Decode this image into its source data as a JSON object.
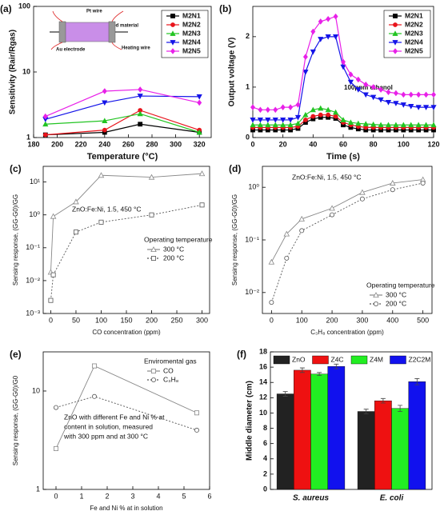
{
  "chart_data": [
    {
      "type": "line",
      "label": "(a)",
      "xlabel": "Temperature (°C)",
      "ylabel": "Sensitivity (Rair/Rgas)",
      "log_y": true,
      "x": [
        190,
        240,
        270,
        320
      ],
      "xlim": [
        180,
        330
      ],
      "xticks": [
        180,
        200,
        220,
        240,
        260,
        280,
        300,
        320
      ],
      "ylim": [
        1,
        100
      ],
      "yticks": [
        1,
        10,
        100
      ],
      "legend": "upper right",
      "legend_frame": true,
      "annotations": [
        "Pt wire",
        "Coated material",
        "Au electrode",
        "Heating wire"
      ],
      "series": [
        {
          "name": "M2N1",
          "color": "#000000",
          "marker": "square",
          "values": [
            1.1,
            1.2,
            1.6,
            1.2
          ]
        },
        {
          "name": "M2N2",
          "color": "#e8141c",
          "marker": "circle",
          "values": [
            1.1,
            1.3,
            2.6,
            1.3
          ]
        },
        {
          "name": "M2N3",
          "color": "#22c422",
          "marker": "triangle",
          "values": [
            1.6,
            1.8,
            2.3,
            1.2
          ]
        },
        {
          "name": "M2N4",
          "color": "#1414e8",
          "marker": "triangle-down",
          "values": [
            1.9,
            3.4,
            4.3,
            4.2
          ]
        },
        {
          "name": "M2N5",
          "color": "#e820e8",
          "marker": "diamond",
          "values": [
            2.1,
            5.1,
            5.4,
            3.4
          ]
        }
      ]
    },
    {
      "type": "line",
      "label": "(b)",
      "xlabel": "Time (s)",
      "ylabel": "Output voltage (V)",
      "x": [
        0,
        5,
        10,
        15,
        20,
        25,
        30,
        35,
        40,
        45,
        50,
        55,
        60,
        65,
        70,
        75,
        80,
        85,
        90,
        95,
        100,
        105,
        110,
        115,
        120
      ],
      "xlim": [
        0,
        120
      ],
      "xticks": [
        0,
        20,
        40,
        60,
        80,
        100,
        120
      ],
      "ylim": [
        0,
        2.6
      ],
      "yticks": [
        0,
        1,
        2
      ],
      "legend": "upper right",
      "legend_frame": true,
      "annotations": [
        "100ppm ethanol"
      ],
      "series": [
        {
          "name": "M2N1",
          "color": "#000000",
          "marker": "square",
          "values": [
            0.15,
            0.15,
            0.15,
            0.15,
            0.15,
            0.15,
            0.18,
            0.3,
            0.37,
            0.4,
            0.4,
            0.38,
            0.25,
            0.2,
            0.17,
            0.15,
            0.15,
            0.15,
            0.15,
            0.15,
            0.15,
            0.15,
            0.15,
            0.15,
            0.15
          ]
        },
        {
          "name": "M2N2",
          "color": "#e8141c",
          "marker": "circle",
          "values": [
            0.2,
            0.2,
            0.2,
            0.2,
            0.2,
            0.2,
            0.22,
            0.35,
            0.42,
            0.45,
            0.45,
            0.42,
            0.3,
            0.25,
            0.22,
            0.2,
            0.2,
            0.2,
            0.2,
            0.2,
            0.2,
            0.2,
            0.2,
            0.2,
            0.2
          ]
        },
        {
          "name": "M2N3",
          "color": "#22c422",
          "marker": "triangle",
          "values": [
            0.25,
            0.25,
            0.25,
            0.25,
            0.25,
            0.25,
            0.28,
            0.45,
            0.55,
            0.58,
            0.55,
            0.5,
            0.35,
            0.3,
            0.28,
            0.27,
            0.26,
            0.25,
            0.25,
            0.25,
            0.25,
            0.25,
            0.25,
            0.25,
            0.25
          ]
        },
        {
          "name": "M2N4",
          "color": "#1414e8",
          "marker": "triangle-down",
          "values": [
            0.35,
            0.35,
            0.35,
            0.35,
            0.35,
            0.35,
            0.4,
            1.3,
            1.7,
            1.95,
            2.0,
            2.0,
            1.4,
            1.1,
            0.95,
            0.85,
            0.8,
            0.75,
            0.7,
            0.68,
            0.65,
            0.62,
            0.6,
            0.6,
            0.6
          ]
        },
        {
          "name": "M2N5",
          "color": "#e820e8",
          "marker": "diamond",
          "values": [
            0.6,
            0.55,
            0.55,
            0.55,
            0.6,
            0.6,
            0.65,
            1.6,
            2.1,
            2.3,
            2.35,
            2.4,
            1.5,
            1.25,
            1.15,
            1.05,
            1.0,
            0.95,
            0.9,
            0.88,
            0.85,
            0.85,
            0.85,
            0.85,
            0.85
          ]
        }
      ]
    },
    {
      "type": "line",
      "label": "(c)",
      "xlabel": "CO concentration (ppm)",
      "ylabel": "Sensing response, (GG-G0)/GG",
      "log_y": true,
      "x": [
        0,
        5,
        50,
        100,
        200,
        300
      ],
      "xlim": [
        -15,
        315
      ],
      "xticks": [
        0,
        50,
        100,
        150,
        200,
        250,
        300
      ],
      "ylim": [
        0.001,
        30
      ],
      "yticks": [
        {
          "value": 0.001,
          "label": "10⁻³"
        },
        {
          "value": 0.01,
          "label": "10⁻²"
        },
        {
          "value": 0.1,
          "label": "10⁻¹"
        },
        {
          "value": 1,
          "label": "10⁰"
        },
        {
          "value": 10,
          "label": "10¹"
        }
      ],
      "legend": "center right",
      "legend_title": "Operating temperature",
      "annotations": [
        "ZnO:Fe:Ni, 1.5, 450 °C"
      ],
      "series": [
        {
          "name": "300 °C",
          "color": "#888888",
          "marker": "open-triangle",
          "line_style": "solid",
          "values": [
            0.018,
            0.9,
            2.5,
            16,
            14,
            18
          ]
        },
        {
          "name": "200 °C",
          "color": "#555555",
          "marker": "open-square",
          "line_style": "dotted",
          "values": [
            0.0025,
            0.015,
            0.3,
            0.6,
            1.0,
            2.0
          ]
        }
      ]
    },
    {
      "type": "line",
      "label": "(d)",
      "xlabel": "C₃H₈ concentration (ppm)",
      "ylabel": "Sensing response, (GG-G0)/GG",
      "log_y": true,
      "x": [
        0,
        50,
        100,
        200,
        300,
        400,
        500
      ],
      "xlim": [
        -30,
        530
      ],
      "xticks": [
        0,
        100,
        200,
        300,
        400,
        500
      ],
      "ylim": [
        0.004,
        2.5
      ],
      "yticks": [
        {
          "value": 0.01,
          "label": "10⁻²"
        },
        {
          "value": 0.1,
          "label": "10⁻¹"
        },
        {
          "value": 1,
          "label": "10⁰"
        }
      ],
      "legend": "lower right",
      "legend_title": "Operating temperature",
      "annotations": [
        "ZnO:Fe:Ni, 1.5, 450 °C"
      ],
      "series": [
        {
          "name": "300 °C",
          "color": "#888888",
          "marker": "open-triangle",
          "line_style": "solid",
          "values": [
            0.038,
            0.13,
            0.25,
            0.4,
            0.8,
            1.2,
            1.4
          ]
        },
        {
          "name": "200 °C",
          "color": "#555555",
          "marker": "open-circle",
          "line_style": "dotted",
          "values": [
            0.0065,
            0.045,
            0.15,
            0.3,
            0.6,
            0.9,
            1.2
          ]
        }
      ]
    },
    {
      "type": "line",
      "label": "(e)",
      "xlabel": "Fe and Ni % at in solution",
      "ylabel": "Sensing response, (GG-G0)/G0",
      "log_y": true,
      "x": [
        0,
        1.5,
        5.5
      ],
      "xlim": [
        -0.5,
        6
      ],
      "xticks": [
        0,
        1,
        2,
        3,
        4,
        5,
        6
      ],
      "ylim": [
        1,
        25
      ],
      "yticks": [
        1,
        10
      ],
      "legend": "upper right",
      "legend_title": "Enviromental gas",
      "annotations": [
        "ZnO with different Fe and Ni % at",
        "content  in solution, measured",
        "with 300 ppm and at 300 °C"
      ],
      "series": [
        {
          "name": "CO",
          "color": "#888888",
          "marker": "open-square",
          "line_style": "solid",
          "values": [
            2.6,
            18,
            6.0
          ]
        },
        {
          "name": "C₃H₈",
          "color": "#555555",
          "marker": "open-circle",
          "line_style": "dotted",
          "values": [
            6.8,
            8.8,
            4.0
          ]
        }
      ]
    },
    {
      "type": "bar",
      "label": "(f)",
      "ylabel": "Middle diameter (cm)",
      "categories": [
        "S. aureus",
        "E. coli"
      ],
      "ylim": [
        0,
        18
      ],
      "yticks": [
        0,
        2,
        4,
        6,
        8,
        10,
        12,
        14,
        16,
        18
      ],
      "legend": "upper center",
      "series": [
        {
          "name": "ZnO",
          "color": "#222222",
          "values": [
            12.5,
            10.2
          ],
          "errors": [
            0.3,
            0.3
          ]
        },
        {
          "name": "Z4C",
          "color": "#ee1111",
          "values": [
            15.6,
            11.6
          ],
          "errors": [
            0.3,
            0.3
          ]
        },
        {
          "name": "Z4M",
          "color": "#22ee22",
          "values": [
            15.1,
            10.6
          ],
          "errors": [
            0.2,
            0.4
          ]
        },
        {
          "name": "Z2C2M",
          "color": "#1111ee",
          "values": [
            16.1,
            14.1
          ],
          "errors": [
            0.3,
            0.4
          ]
        }
      ]
    }
  ]
}
